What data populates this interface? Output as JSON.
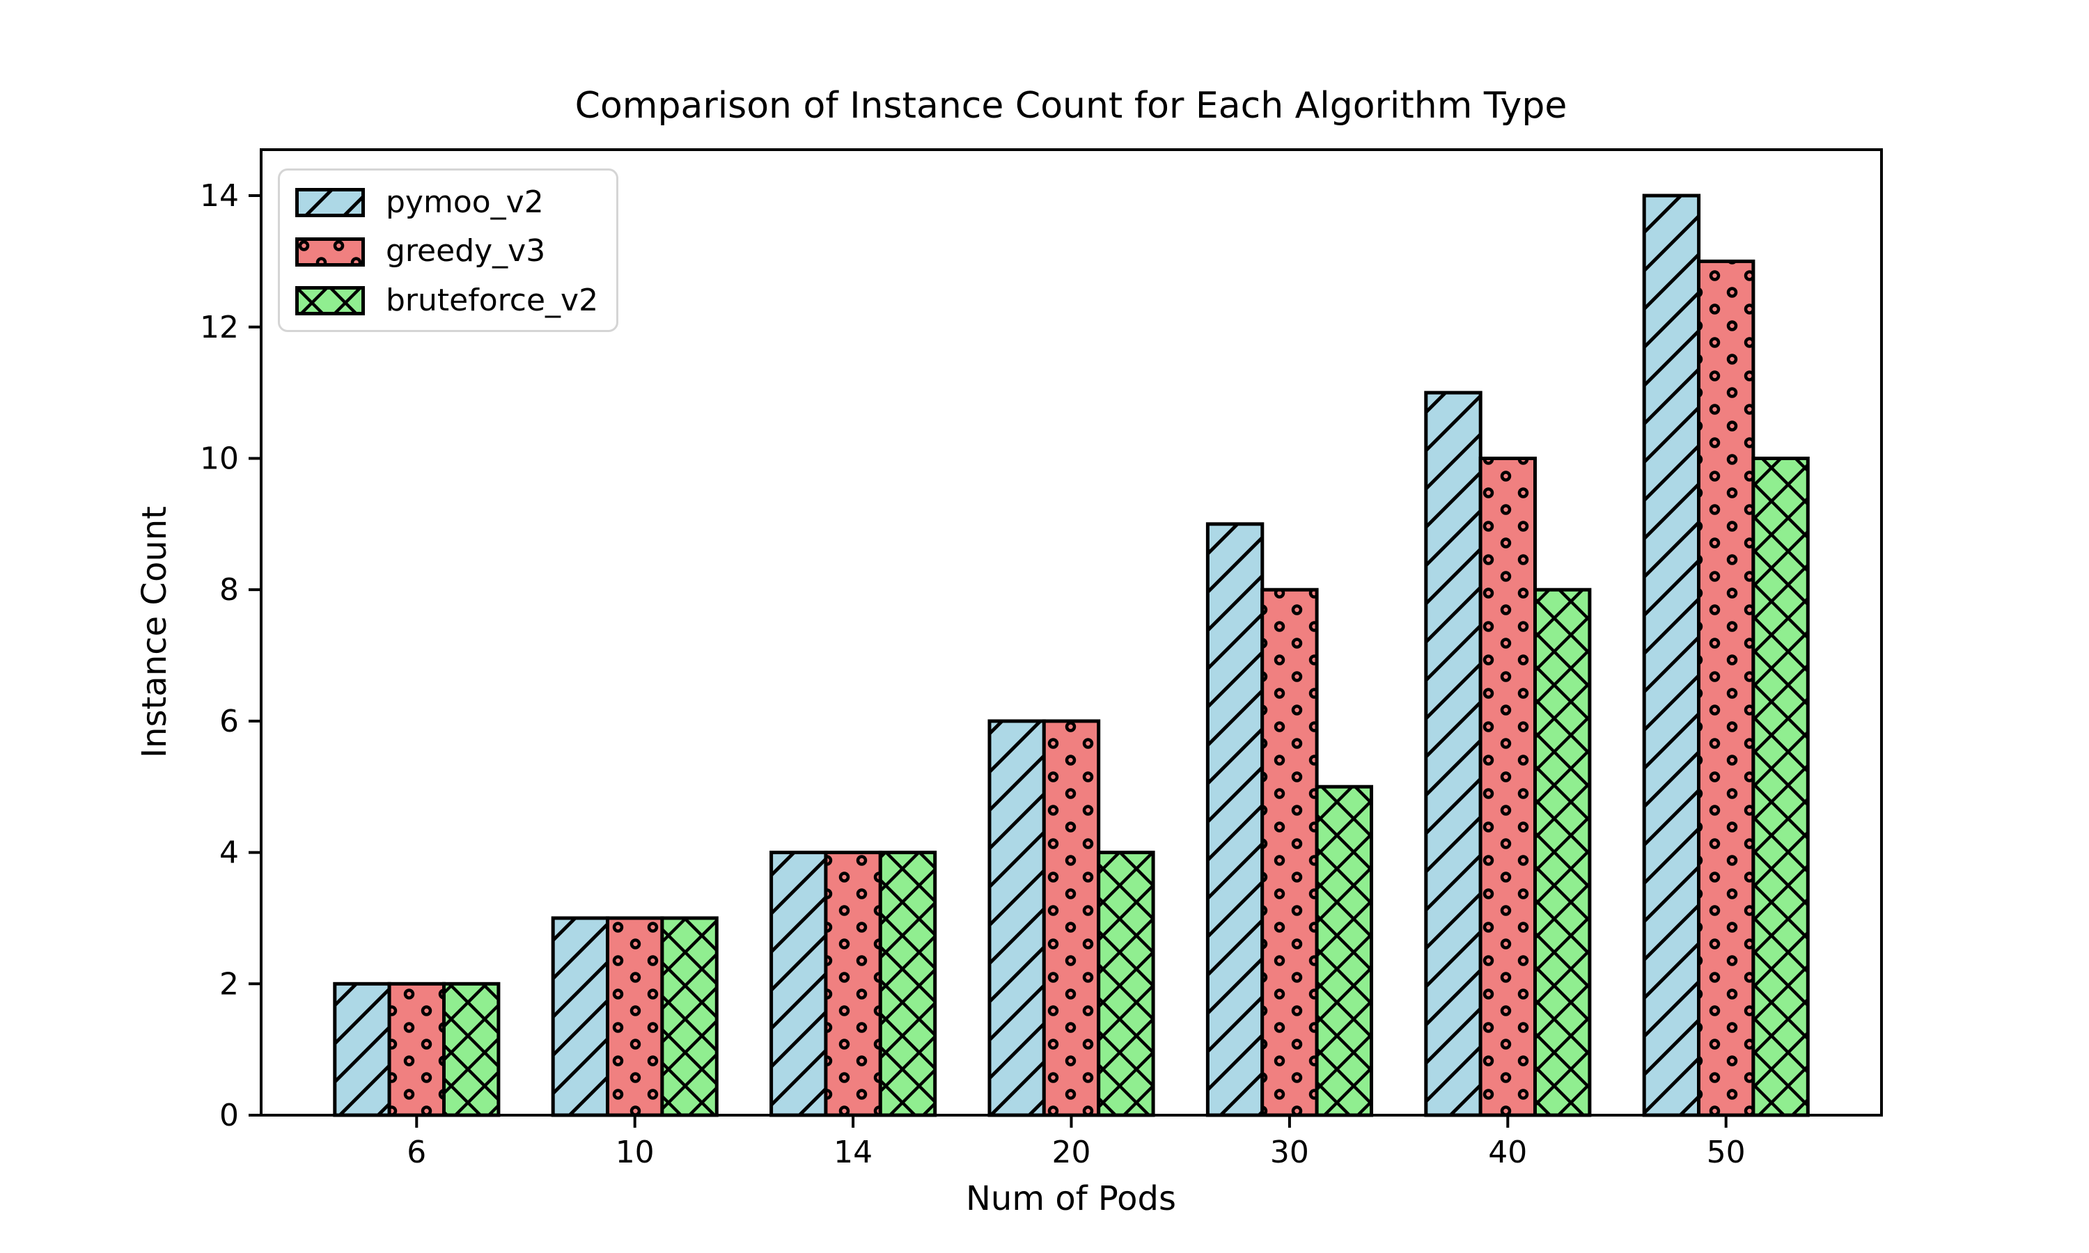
{
  "chart_data": {
    "type": "bar",
    "title": "Comparison of Instance Count for Each Algorithm Type",
    "xlabel": "Num of Pods",
    "ylabel": "Instance Count",
    "categories": [
      "6",
      "10",
      "14",
      "20",
      "30",
      "40",
      "50"
    ],
    "series": [
      {
        "name": "pymoo_v2",
        "color": "#ADD8E6",
        "hatch": "/",
        "values": [
          2,
          3,
          4,
          6,
          9,
          11,
          14
        ]
      },
      {
        "name": "greedy_v3",
        "color": "#F08080",
        "hatch": "o",
        "values": [
          2,
          3,
          4,
          6,
          8,
          10,
          13
        ]
      },
      {
        "name": "bruteforce_v2",
        "color": "#90EE90",
        "hatch": "x",
        "values": [
          2,
          3,
          4,
          4,
          5,
          8,
          10
        ]
      }
    ],
    "yticks": [
      "0",
      "2",
      "4",
      "6",
      "8",
      "10",
      "12",
      "14"
    ],
    "ylim": [
      0,
      14.7
    ],
    "legend_position": "upper left",
    "grid": false,
    "edge_color": "#000000",
    "background": "#ffffff"
  }
}
